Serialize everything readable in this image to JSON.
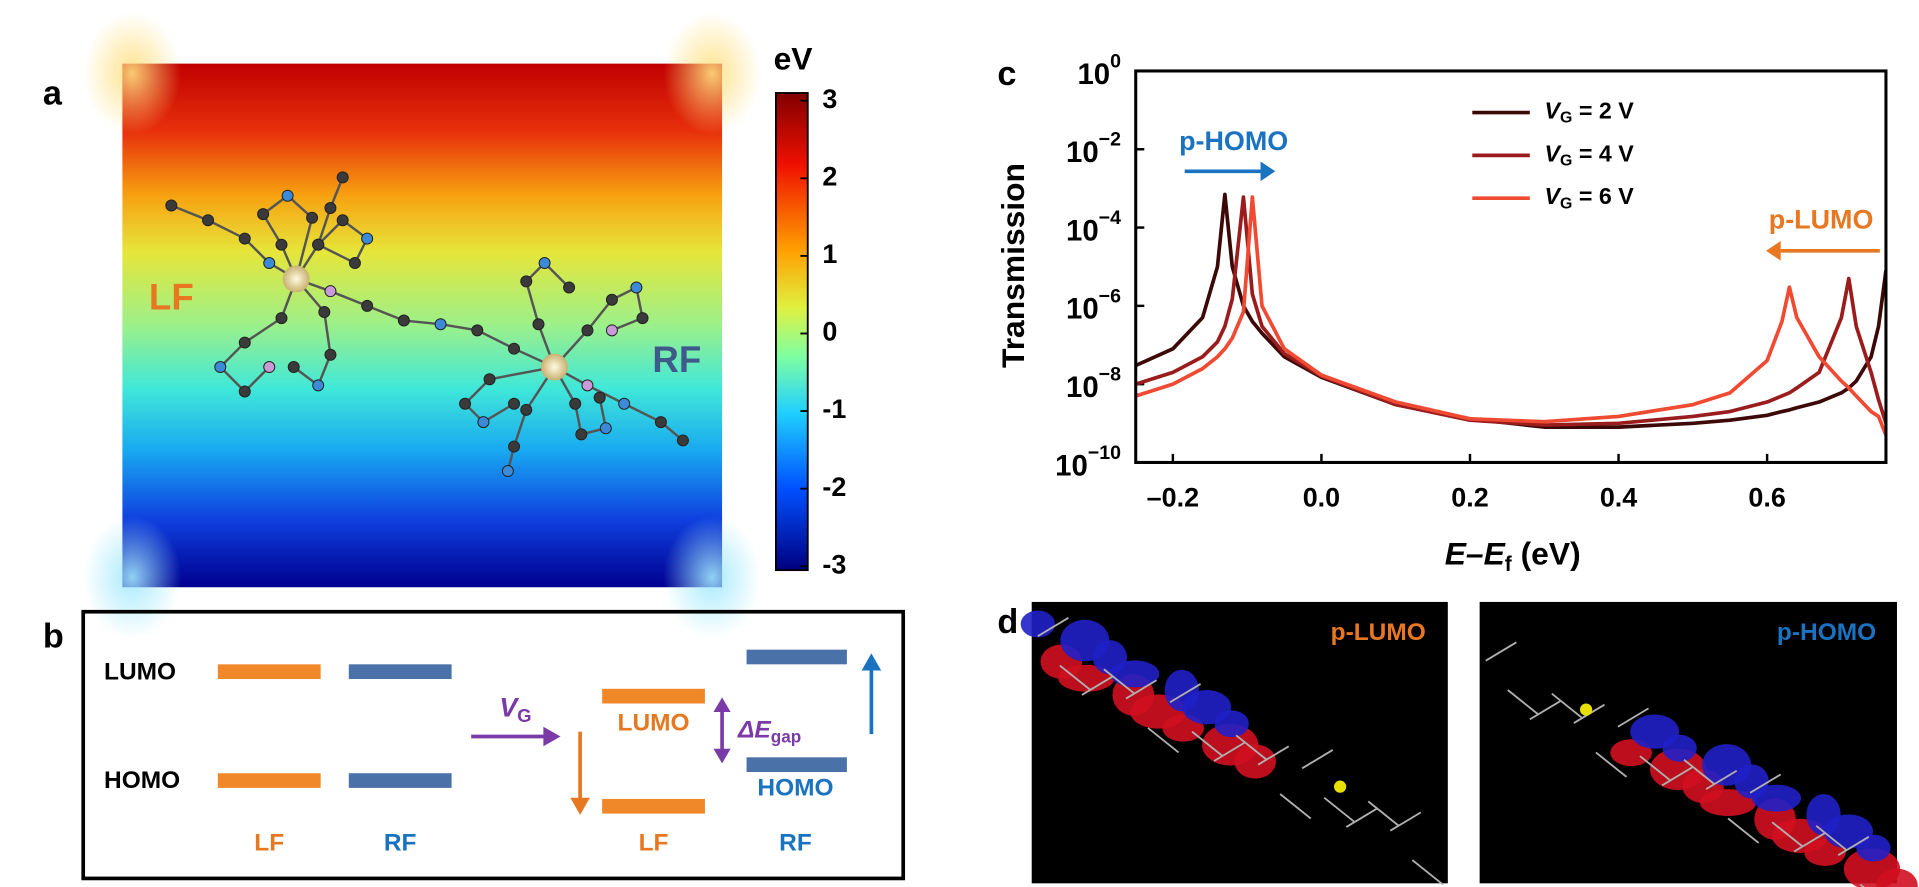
{
  "panel_a": {
    "label": "a",
    "annotations": [
      "LF",
      "RF"
    ],
    "colorbar": {
      "title": "eV",
      "lim": [
        -3.05,
        3.1
      ],
      "ticks": [
        3,
        2,
        1,
        0,
        -1,
        -2,
        -3
      ]
    }
  },
  "panel_b": {
    "label": "b",
    "left": {
      "upper": "LUMO",
      "lower": "HOMO",
      "columns": [
        "LF",
        "RF"
      ]
    },
    "arrow_label": [
      "V",
      "G"
    ],
    "right": {
      "upper": "LUMO",
      "lower": "HOMO",
      "gap": [
        "ΔE",
        "gap"
      ],
      "columns": [
        "LF",
        "RF"
      ]
    }
  },
  "chart_data": {
    "type": "line",
    "panel_label": "c",
    "y_label": "Transmission",
    "x_label": [
      "E–E",
      "f",
      " (eV)"
    ],
    "log_y": true,
    "legend": "upper center",
    "x": [
      -0.25,
      -0.2,
      -0.16,
      -0.14,
      -0.13,
      -0.12,
      -0.105,
      -0.093,
      -0.08,
      -0.05,
      0,
      0.1,
      0.2,
      0.3,
      0.4,
      0.5,
      0.55,
      0.6,
      0.62,
      0.63,
      0.64,
      0.67,
      0.7,
      0.71,
      0.72,
      0.74,
      0.75,
      0.76
    ],
    "series": [
      {
        "name": [
          "V",
          "G",
          " = 2 V"
        ],
        "color": "#3d0808",
        "values": [
          3e-08,
          8e-08,
          5e-07,
          1e-05,
          0.0007,
          1e-05,
          1e-06,
          4e-07,
          2e-07,
          5e-08,
          1.5e-08,
          3e-09,
          1.3e-09,
          8e-10,
          8e-10,
          1e-09,
          1.2e-09,
          1.6e-09,
          2e-09,
          2.2e-09,
          2.5e-09,
          3.5e-09,
          6e-09,
          8e-09,
          1.2e-08,
          5e-08,
          3e-07,
          8e-06
        ]
      },
      {
        "name": [
          "V",
          "G",
          " = 4 V"
        ],
        "color": "#9b1c1c",
        "values": [
          1e-08,
          2e-08,
          5e-08,
          1.2e-07,
          3e-07,
          1.5e-06,
          0.0006,
          2e-06,
          3e-07,
          6e-08,
          1.6e-08,
          3e-09,
          1.2e-09,
          9e-10,
          1e-09,
          1.5e-09,
          2e-09,
          3.5e-09,
          5e-09,
          6e-09,
          8e-09,
          2e-08,
          5e-07,
          5e-06,
          3e-07,
          2e-08,
          4e-09,
          1e-09
        ]
      },
      {
        "name": [
          "V",
          "G",
          " = 6 V"
        ],
        "color": "#f04a32",
        "values": [
          5e-09,
          1e-08,
          2.5e-08,
          5e-08,
          8e-08,
          1.5e-07,
          7e-07,
          0.0006,
          1e-06,
          8e-08,
          1.7e-08,
          3.5e-09,
          1.3e-09,
          1.1e-09,
          1.5e-09,
          3e-09,
          6e-09,
          4e-08,
          4e-07,
          3e-06,
          5e-07,
          5e-08,
          1.2e-08,
          8e-09,
          5e-09,
          2e-09,
          1.5e-09,
          5e-10
        ]
      }
    ],
    "xlim": [
      -0.25,
      0.76
    ],
    "ylim": [
      1e-10,
      1
    ],
    "xticks": [
      {
        "value": -0.2,
        "label": "–0.2"
      },
      {
        "value": 0,
        "label": "0.0"
      },
      0.2,
      0.4,
      0.6
    ],
    "yticks": [
      {
        "value": 1e-10,
        "label": "10",
        "exponent": "−10"
      },
      {
        "value": 1e-08,
        "label": "10",
        "exponent": "−8"
      },
      {
        "value": 1e-06,
        "label": "10",
        "exponent": "−6"
      },
      {
        "value": 0.0001,
        "label": "10",
        "exponent": "−4"
      },
      {
        "value": 0.01,
        "label": "10",
        "exponent": "−2"
      },
      {
        "value": 1,
        "label": "10",
        "exponent": "0"
      }
    ],
    "annotations": [
      {
        "text": "p-HOMO",
        "color": "#1a73c0"
      },
      {
        "text": "p-LUMO",
        "color": "#e87722"
      }
    ]
  },
  "panel_d": {
    "label": "d",
    "images": [
      {
        "text": "p-LUMO",
        "color": "#e87722"
      },
      {
        "text": "p-HOMO",
        "color": "#1a73c0"
      }
    ]
  }
}
